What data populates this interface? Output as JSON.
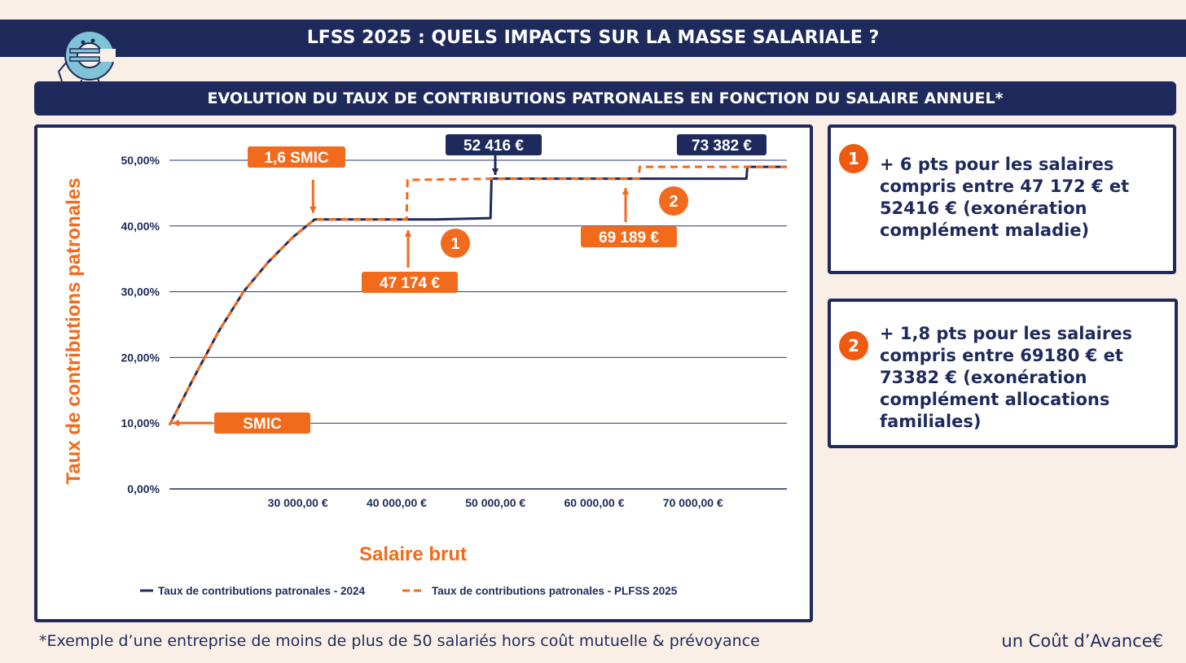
{
  "header": {
    "title": "LFSS 2025 : QUELS IMPACTS SUR LA MASSE SALARIALE ?",
    "subtitle": "EVOLUTION DU TAUX DE CONTRIBUTIONS PATRONALES EN FONCTION DU SALAIRE ANNUEL*"
  },
  "chart_data": {
    "type": "line",
    "xlabel": "Salaire brut",
    "ylabel": "Taux de contributions patronales",
    "xlim": [
      17000,
      79500
    ],
    "ylim": [
      0,
      50
    ],
    "x_ticks": [
      30000,
      40000,
      50000,
      60000,
      70000
    ],
    "x_tick_labels": [
      "30 000,00 €",
      "40 000,00 €",
      "50 000,00 €",
      "60 000,00 €",
      "70 000,00 €"
    ],
    "y_ticks": [
      0,
      10,
      20,
      30,
      40,
      50
    ],
    "y_tick_labels": [
      "0,00%",
      "10,00%",
      "20,00%",
      "30,00%",
      "40,00%",
      "50,00%"
    ],
    "grid": true,
    "legend_position": "bottom",
    "series": [
      {
        "name": "Taux de contributions patronales - 2024",
        "color": "#1f2a5c",
        "style": "solid",
        "points": [
          [
            17000,
            9.7
          ],
          [
            19500,
            17
          ],
          [
            22000,
            24
          ],
          [
            24500,
            30
          ],
          [
            27000,
            34.5
          ],
          [
            29500,
            38.3
          ],
          [
            31700,
            41
          ],
          [
            38000,
            41
          ],
          [
            44000,
            41
          ],
          [
            49500,
            41.2
          ],
          [
            49600,
            47.2
          ],
          [
            67000,
            47.2
          ],
          [
            75400,
            47.2
          ],
          [
            75500,
            49
          ],
          [
            79500,
            49
          ]
        ]
      },
      {
        "name": "Taux de contributions patronales - PLFSS 2025",
        "color": "#f26a1b",
        "style": "dashed",
        "points": [
          [
            17000,
            9.7
          ],
          [
            19500,
            17
          ],
          [
            22000,
            24
          ],
          [
            24500,
            30
          ],
          [
            27000,
            34.5
          ],
          [
            29500,
            38.3
          ],
          [
            31700,
            41
          ],
          [
            38000,
            41
          ],
          [
            41000,
            41
          ],
          [
            41100,
            47
          ],
          [
            50000,
            47.2
          ],
          [
            64500,
            47.2
          ],
          [
            64600,
            49
          ],
          [
            79500,
            49
          ]
        ]
      }
    ],
    "annotations": [
      {
        "label": "1,6 SMIC",
        "style": "orange",
        "x": 31700,
        "y": 41,
        "arrow": "down"
      },
      {
        "label": "SMIC",
        "style": "orange",
        "x": 17000,
        "y": 9.7,
        "arrow": "left"
      },
      {
        "label": "47 174 €",
        "style": "orange",
        "x": 41100,
        "y": 41,
        "arrow": "up"
      },
      {
        "label": "52 416 €",
        "style": "navy",
        "x": 49600,
        "y": 47.2,
        "arrow": "down"
      },
      {
        "label": "69 189 €",
        "style": "orange",
        "x": 64600,
        "y": 47.2,
        "arrow": "up"
      },
      {
        "label": "73 382 €",
        "style": "navy",
        "x": 75500,
        "y": 49,
        "arrow": "none"
      }
    ],
    "markers": [
      "1",
      "2"
    ]
  },
  "info": [
    {
      "num": "1",
      "text": "+ 6 pts pour les salaires compris entre 47 172 € et 52416 € (exonération complément maladie)"
    },
    {
      "num": "2",
      "text": "+ 1,8 pts pour les salaires compris entre 69180 € et 73382 € (exonération complément allocations familiales)"
    }
  ],
  "footnote": "*Exemple d’une entreprise de moins de plus de 50 salariés hors coût mutuelle & prévoyance",
  "brand": "un Coût d’Avance€",
  "colors": {
    "navy": "#1f2a5c",
    "orange": "#f26a1b",
    "background": "#f9efe6"
  }
}
